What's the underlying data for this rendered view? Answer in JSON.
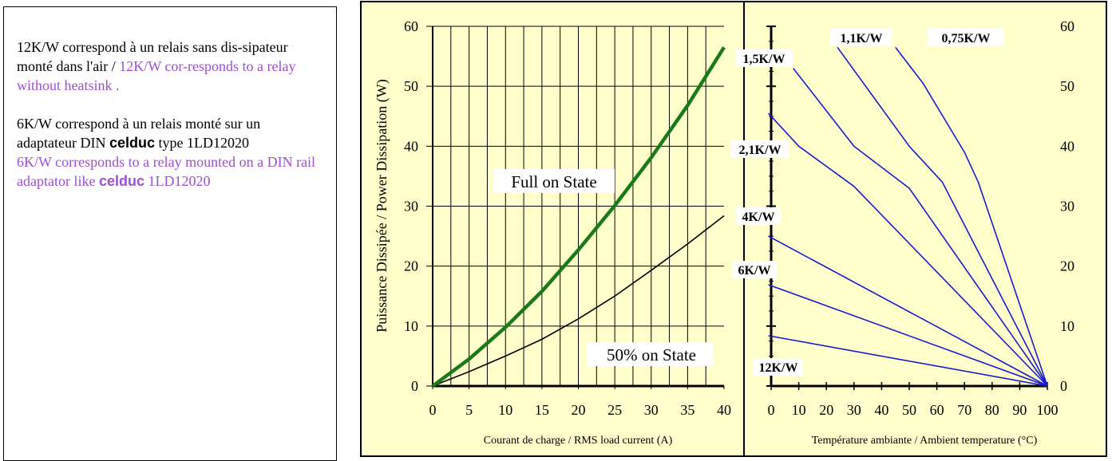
{
  "note": {
    "p1_fr": "12K/W correspond à un relais sans dis-sipateur monté dans l'air / ",
    "p1_en": "12K/W cor-responds to a relay without heatsink .",
    "p2_fr_a": "6K/W correspond à un relais monté sur un adaptateur DIN ",
    "p2_brand": "celduc",
    "p2_fr_b": " type 1LD12020",
    "p3_en_a": "6K/W corresponds to a relay mounted on a DIN rail adaptator like ",
    "p3_brand": "celduc",
    "p3_en_b": " 1LD12020"
  },
  "colors": {
    "panel_bg": "#ffffcc",
    "full_on": "#1a7a1a",
    "half_on": "#000000",
    "thermal": "#1a1acc",
    "note_english": "#9b4fd1"
  },
  "chart_data": [
    {
      "type": "line",
      "xlabel": "Courant de charge / RMS load current (A)",
      "ylabel": "Puissance Dissipée / Power Dissipation (W)",
      "xlim": [
        0,
        40
      ],
      "ylim": [
        0,
        60
      ],
      "xticks": [
        "0",
        "5",
        "10",
        "15",
        "20",
        "25",
        "30",
        "35",
        "40"
      ],
      "yticks": [
        "0",
        "10",
        "20",
        "30",
        "40",
        "50",
        "60"
      ],
      "grid": true,
      "series": [
        {
          "name": "Full on State",
          "x": [
            0,
            5,
            10,
            15,
            20,
            25,
            30,
            35,
            40
          ],
          "y": [
            0,
            4.5,
            9.8,
            15.8,
            22.7,
            30.1,
            38.1,
            46.8,
            56.5
          ]
        },
        {
          "name": "50% on State",
          "x": [
            0,
            5,
            10,
            15,
            20,
            25,
            30,
            35,
            40
          ],
          "y": [
            0,
            2.4,
            5,
            7.8,
            11.2,
            15,
            19.3,
            23.7,
            28.4
          ]
        }
      ]
    },
    {
      "type": "line",
      "xlabel": "Température ambiante / Ambient temperature (°C)",
      "xlim": [
        0,
        100
      ],
      "ylim": [
        0,
        60
      ],
      "xticks": [
        "0",
        "10",
        "20",
        "30",
        "40",
        "50",
        "60",
        "70",
        "80",
        "90",
        "100"
      ],
      "yticks": [
        "0",
        "10",
        "20",
        "30",
        "40",
        "50",
        "60"
      ],
      "series": [
        {
          "name": "0,75K/W",
          "x": [
            45,
            55,
            70,
            75,
            100
          ],
          "y": [
            56.5,
            50.5,
            39,
            34,
            0
          ]
        },
        {
          "name": "1,1K/W",
          "x": [
            24,
            50,
            62,
            100
          ],
          "y": [
            56.5,
            40,
            34,
            0
          ]
        },
        {
          "name": "1,5K/W",
          "x": [
            8,
            30,
            50,
            100
          ],
          "y": [
            53,
            40,
            33,
            0
          ]
        },
        {
          "name": "2,1K/W",
          "x": [
            -1,
            10,
            30,
            100
          ],
          "y": [
            45.5,
            40,
            33.3,
            0
          ]
        },
        {
          "name": "4K/W",
          "x": [
            -1,
            100
          ],
          "y": [
            25,
            0
          ]
        },
        {
          "name": "6K/W",
          "x": [
            -1,
            100
          ],
          "y": [
            16.9,
            0
          ]
        },
        {
          "name": "12K/W",
          "x": [
            -1,
            100
          ],
          "y": [
            8.4,
            0
          ]
        }
      ]
    }
  ]
}
